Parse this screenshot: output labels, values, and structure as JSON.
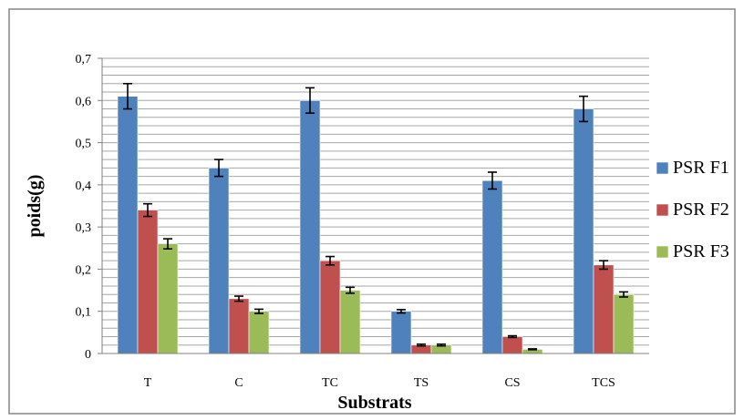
{
  "chart_data": {
    "type": "bar",
    "title": "",
    "xlabel": "Substrats",
    "ylabel": "poids(g)",
    "ylim": [
      0,
      0.7
    ],
    "yticks": [
      "0",
      "0,1",
      "0,2",
      "0,3",
      "0,4",
      "0,5",
      "0,6",
      "0,7"
    ],
    "minor_grid_step": 0.02,
    "grid": true,
    "legend_position": "right",
    "categories": [
      "T",
      "C",
      "TC",
      "TS",
      "CS",
      "TCS"
    ],
    "series": [
      {
        "name": "PSR F1",
        "color": "#4F81BD",
        "values": [
          0.61,
          0.44,
          0.6,
          0.1,
          0.41,
          0.58
        ],
        "errors": [
          0.03,
          0.02,
          0.03,
          0.004,
          0.02,
          0.03
        ]
      },
      {
        "name": "PSR F2",
        "color": "#C0504D",
        "values": [
          0.34,
          0.13,
          0.22,
          0.02,
          0.04,
          0.21
        ],
        "errors": [
          0.015,
          0.006,
          0.01,
          0.002,
          0.002,
          0.01
        ]
      },
      {
        "name": "PSR F3",
        "color": "#9BBB59",
        "values": [
          0.26,
          0.1,
          0.15,
          0.02,
          0.01,
          0.14
        ],
        "errors": [
          0.012,
          0.005,
          0.007,
          0.002,
          0.001,
          0.006
        ]
      }
    ]
  }
}
